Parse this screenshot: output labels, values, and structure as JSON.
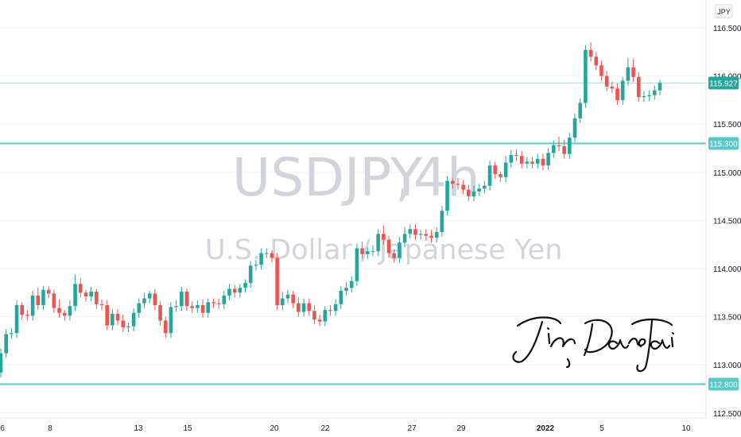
{
  "chart_data": {
    "type": "candlestick",
    "symbol": "USDJPY",
    "interval": "4h",
    "description": "U.S. Dollar / Japanese Yen",
    "currency": "JPY",
    "ylim": [
      112.5,
      116.6
    ],
    "y_ticks": [
      "116.500",
      "116.000",
      "115.500",
      "115.000",
      "114.500",
      "114.000",
      "113.500",
      "113.000",
      "112.500"
    ],
    "x_ticks": [
      "6",
      "8",
      "13",
      "15",
      "20",
      "22",
      "27",
      "29",
      "2022",
      "5",
      "10"
    ],
    "grid": "horizontal",
    "horizontal_levels": [
      {
        "value": 115.3,
        "label": "115.300"
      },
      {
        "value": 112.8,
        "label": "112.800"
      }
    ],
    "last_price": {
      "value": 115.927,
      "label": "115.927"
    },
    "signature": "JinDaoTai",
    "colors": {
      "up": "#26a69a",
      "down": "#ef5350",
      "level": "#5ac8c8",
      "last_price": "#26a69a"
    },
    "candles": {
      "open": [
        112.92,
        113.12,
        113.32,
        113.33,
        113.62,
        113.52,
        113.51,
        113.72,
        113.62,
        113.78,
        113.74,
        113.59,
        113.54,
        113.51,
        113.61,
        113.84,
        113.75,
        113.71,
        113.76,
        113.63,
        113.62,
        113.41,
        113.53,
        113.46,
        113.39,
        113.4,
        113.54,
        113.64,
        113.69,
        113.74,
        113.62,
        113.46,
        113.33,
        113.6,
        113.61,
        113.76,
        113.61,
        113.59,
        113.62,
        113.54,
        113.65,
        113.64,
        113.63,
        113.72,
        113.79,
        113.75,
        113.8,
        113.85,
        114.03,
        114.04,
        114.16,
        114.16,
        114.11,
        113.62,
        113.69,
        113.73,
        113.64,
        113.55,
        113.64,
        113.56,
        113.47,
        113.45,
        113.57,
        113.56,
        113.63,
        113.77,
        113.8,
        113.87,
        114.21,
        114.15,
        114.18,
        114.18,
        114.36,
        114.3,
        114.16,
        114.11,
        114.27,
        114.36,
        114.41,
        114.35,
        114.36,
        114.34,
        114.32,
        114.38,
        114.6,
        114.91,
        114.88,
        114.87,
        114.82,
        114.75,
        114.8,
        114.83,
        114.86,
        115.07,
        114.98,
        114.95,
        115.1,
        115.18,
        115.17,
        115.09,
        115.11,
        115.09,
        115.14,
        115.07,
        115.2,
        115.28,
        115.27,
        115.19,
        115.36,
        115.56,
        115.72,
        116.27,
        116.2,
        116.11,
        116.0,
        115.89,
        115.87,
        115.75,
        115.95,
        116.09,
        115.99,
        115.78,
        115.79,
        115.8,
        115.85
      ],
      "close": [
        113.12,
        113.32,
        113.33,
        113.62,
        113.52,
        113.51,
        113.72,
        113.62,
        113.78,
        113.74,
        113.59,
        113.54,
        113.51,
        113.61,
        113.84,
        113.75,
        113.71,
        113.76,
        113.63,
        113.62,
        113.41,
        113.53,
        113.46,
        113.39,
        113.4,
        113.54,
        113.64,
        113.69,
        113.74,
        113.62,
        113.46,
        113.33,
        113.6,
        113.61,
        113.76,
        113.61,
        113.59,
        113.62,
        113.54,
        113.65,
        113.64,
        113.63,
        113.72,
        113.79,
        113.75,
        113.8,
        113.85,
        114.03,
        114.04,
        114.16,
        114.16,
        114.11,
        113.62,
        113.69,
        113.73,
        113.64,
        113.55,
        113.64,
        113.56,
        113.47,
        113.45,
        113.57,
        113.56,
        113.63,
        113.77,
        113.8,
        113.87,
        114.21,
        114.15,
        114.18,
        114.18,
        114.36,
        114.3,
        114.16,
        114.11,
        114.27,
        114.36,
        114.41,
        114.35,
        114.36,
        114.34,
        114.32,
        114.38,
        114.6,
        114.91,
        114.88,
        114.87,
        114.82,
        114.75,
        114.8,
        114.83,
        114.86,
        115.07,
        114.98,
        114.95,
        115.1,
        115.18,
        115.17,
        115.09,
        115.11,
        115.09,
        115.14,
        115.07,
        115.2,
        115.28,
        115.27,
        115.19,
        115.36,
        115.56,
        115.72,
        116.27,
        116.2,
        116.11,
        116.0,
        115.89,
        115.87,
        115.75,
        115.95,
        116.09,
        115.99,
        115.78,
        115.79,
        115.8,
        115.85,
        115.927
      ],
      "high": [
        113.17,
        113.37,
        113.38,
        113.67,
        113.65,
        113.57,
        113.77,
        113.8,
        113.82,
        113.82,
        113.78,
        113.68,
        113.57,
        113.67,
        113.94,
        113.9,
        113.78,
        113.81,
        113.79,
        113.68,
        113.67,
        113.58,
        113.58,
        113.52,
        113.44,
        113.59,
        113.69,
        113.75,
        113.77,
        113.79,
        113.66,
        113.5,
        113.65,
        113.67,
        113.81,
        113.79,
        113.66,
        113.67,
        113.68,
        113.69,
        113.69,
        113.69,
        113.77,
        113.84,
        113.83,
        113.84,
        113.89,
        114.08,
        114.09,
        114.21,
        114.21,
        114.19,
        114.16,
        113.76,
        113.78,
        113.77,
        113.7,
        113.69,
        113.69,
        113.62,
        113.52,
        113.61,
        113.62,
        113.68,
        113.82,
        113.86,
        113.92,
        114.26,
        114.28,
        114.22,
        114.24,
        114.41,
        114.45,
        114.34,
        114.2,
        114.33,
        114.43,
        114.46,
        114.46,
        114.4,
        114.41,
        114.4,
        114.43,
        114.65,
        114.96,
        114.94,
        114.94,
        114.92,
        114.87,
        114.86,
        114.88,
        114.91,
        115.12,
        115.11,
        115.01,
        115.17,
        115.23,
        115.24,
        115.22,
        115.16,
        115.16,
        115.19,
        115.19,
        115.25,
        115.33,
        115.37,
        115.34,
        115.41,
        115.61,
        115.77,
        116.32,
        116.35,
        116.25,
        116.16,
        116.05,
        115.94,
        115.92,
        115.99,
        116.19,
        116.18,
        116.04,
        115.84,
        115.85,
        115.9,
        115.96
      ],
      "low": [
        112.87,
        113.07,
        113.27,
        113.28,
        113.47,
        113.46,
        113.46,
        113.57,
        113.57,
        113.69,
        113.54,
        113.49,
        113.46,
        113.46,
        113.56,
        113.7,
        113.66,
        113.66,
        113.58,
        113.57,
        113.36,
        113.36,
        113.41,
        113.34,
        113.34,
        113.35,
        113.49,
        113.59,
        113.64,
        113.57,
        113.41,
        113.28,
        113.28,
        113.55,
        113.56,
        113.56,
        113.54,
        113.54,
        113.49,
        113.49,
        113.59,
        113.58,
        113.58,
        113.67,
        113.7,
        113.7,
        113.75,
        113.8,
        113.98,
        113.99,
        114.11,
        114.06,
        113.57,
        113.57,
        113.64,
        113.59,
        113.5,
        113.5,
        113.51,
        113.42,
        113.4,
        113.4,
        113.51,
        113.51,
        113.58,
        113.72,
        113.75,
        113.82,
        114.1,
        114.1,
        114.13,
        114.13,
        114.25,
        114.11,
        114.06,
        114.06,
        114.22,
        114.31,
        114.3,
        114.3,
        114.29,
        114.27,
        114.27,
        114.33,
        114.55,
        114.83,
        114.82,
        114.77,
        114.7,
        114.7,
        114.75,
        114.78,
        114.81,
        114.93,
        114.9,
        114.9,
        115.05,
        115.12,
        115.04,
        115.04,
        115.04,
        115.04,
        115.02,
        115.02,
        115.15,
        115.22,
        115.14,
        115.14,
        115.31,
        115.51,
        115.67,
        116.15,
        116.06,
        115.95,
        115.84,
        115.82,
        115.7,
        115.7,
        115.9,
        115.94,
        115.73,
        115.73,
        115.74,
        115.75,
        115.8
      ]
    }
  }
}
